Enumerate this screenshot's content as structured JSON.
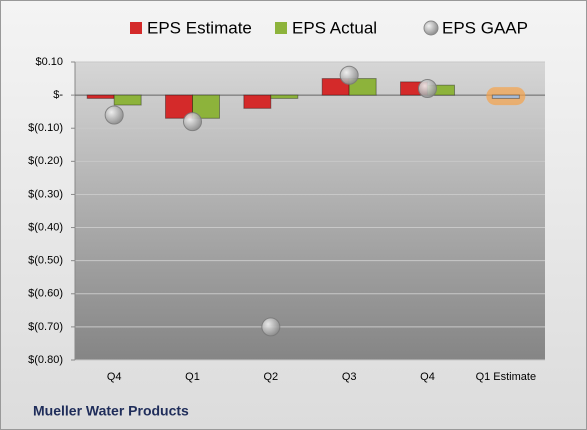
{
  "chart_data": {
    "type": "bar",
    "categories": [
      "Q4",
      "Q1",
      "Q2",
      "Q3",
      "Q4",
      "Q1 Estimate"
    ],
    "series": [
      {
        "name": "EPS Estimate",
        "color": "#d42a2a",
        "values": [
          -0.01,
          -0.07,
          -0.04,
          0.05,
          0.04,
          -0.01
        ]
      },
      {
        "name": "EPS Actual",
        "color": "#8db33b",
        "values": [
          -0.03,
          -0.07,
          -0.01,
          0.05,
          0.03,
          null
        ]
      },
      {
        "name": "EPS GAAP",
        "color": "#a6a6a6",
        "marker": "circle",
        "values": [
          -0.06,
          -0.08,
          -0.7,
          0.06,
          0.02,
          null
        ]
      }
    ],
    "estimate_color": "#a9bcd6",
    "estimate_glow": "#f5a24a",
    "ylim": [
      -0.8,
      0.1
    ],
    "yticks": [
      {
        "value": 0.1,
        "label": "$0.10"
      },
      {
        "value": 0,
        "label": "$-"
      },
      {
        "value": -0.1,
        "label": "$(0.10)"
      },
      {
        "value": -0.2,
        "label": "$(0.20)"
      },
      {
        "value": -0.3,
        "label": "$(0.30)"
      },
      {
        "value": -0.4,
        "label": "$(0.40)"
      },
      {
        "value": -0.5,
        "label": "$(0.50)"
      },
      {
        "value": -0.6,
        "label": "$(0.60)"
      },
      {
        "value": -0.7,
        "label": "$(0.70)"
      },
      {
        "value": -0.8,
        "label": "$(0.80)"
      }
    ],
    "grid": true,
    "legend": "top",
    "footer": "Mueller Water Products"
  }
}
